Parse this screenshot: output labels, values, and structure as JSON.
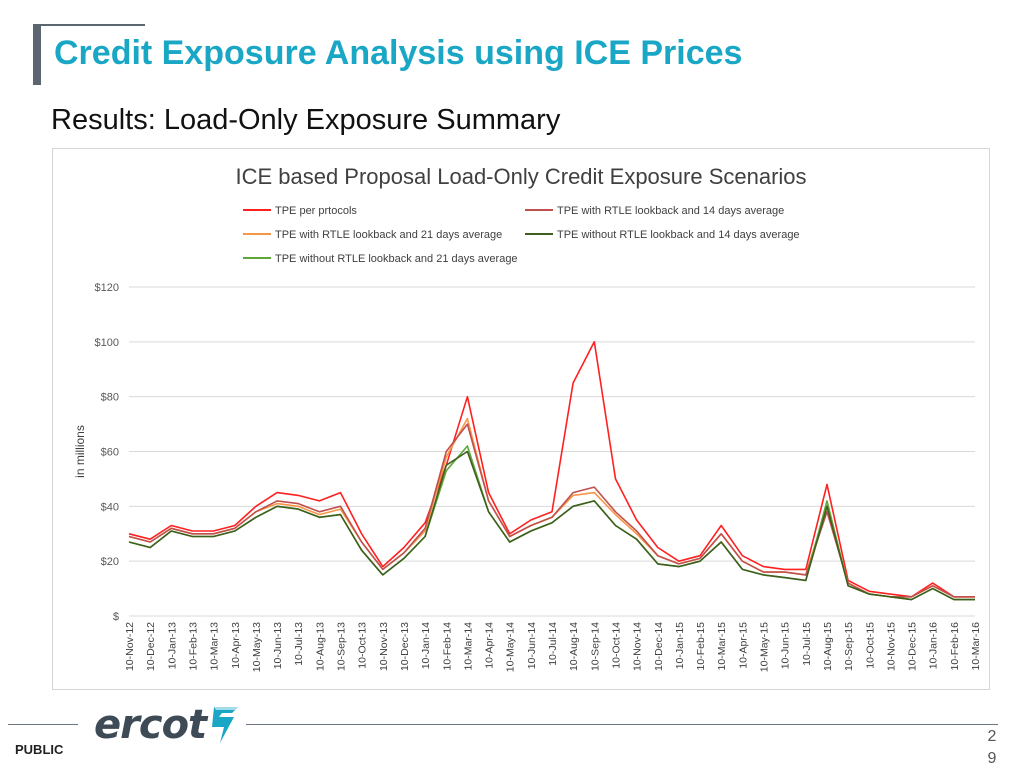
{
  "slide": {
    "title": "Credit Exposure Analysis using ICE Prices",
    "subtitle": "Results: Load-Only Exposure Summary",
    "footer_label": "PUBLIC",
    "logo_text": "ercot",
    "page_number_line1": "2",
    "page_number_line2": "9"
  },
  "colors": {
    "title": "#1aa7c6",
    "accent_bar": "#5b6670",
    "TPE per prtocols": "#ff2020",
    "TPE with RTLE lookback and 14 days average": "#c0504d",
    "TPE with RTLE lookback and 21 days average": "#f79646",
    "TPE without RTLE lookback and 14 days average": "#3f5f1f",
    "TPE without RTLE lookback and 21 days average": "#5ea83a"
  },
  "chart_data": {
    "type": "line",
    "title": "ICE based Proposal Load-Only Credit Exposure Scenarios",
    "xlabel": "",
    "ylabel": "in millions",
    "ylim": [
      0,
      120
    ],
    "y_ticks": [
      "$",
      "$20",
      "$40",
      "$60",
      "$80",
      "$100",
      "$120"
    ],
    "y_tick_values": [
      0,
      20,
      40,
      60,
      80,
      100,
      120
    ],
    "grid": true,
    "legend_position": "top",
    "categories": [
      "10-Nov-12",
      "10-Dec-12",
      "10-Jan-13",
      "10-Feb-13",
      "10-Mar-13",
      "10-Apr-13",
      "10-May-13",
      "10-Jun-13",
      "10-Jul-13",
      "10-Aug-13",
      "10-Sep-13",
      "10-Oct-13",
      "10-Nov-13",
      "10-Dec-13",
      "10-Jan-14",
      "10-Feb-14",
      "10-Mar-14",
      "10-Apr-14",
      "10-May-14",
      "10-Jun-14",
      "10-Jul-14",
      "10-Aug-14",
      "10-Sep-14",
      "10-Oct-14",
      "10-Nov-14",
      "10-Dec-14",
      "10-Jan-15",
      "10-Feb-15",
      "10-Mar-15",
      "10-Apr-15",
      "10-May-15",
      "10-Jun-15",
      "10-Jul-15",
      "10-Aug-15",
      "10-Sep-15",
      "10-Oct-15",
      "10-Nov-15",
      "10-Dec-15",
      "10-Jan-16",
      "10-Feb-16",
      "10-Mar-16"
    ],
    "series": [
      {
        "name": "TPE per prtocols",
        "values": [
          30,
          28,
          33,
          31,
          31,
          33,
          40,
          45,
          44,
          42,
          45,
          30,
          18,
          25,
          34,
          55,
          80,
          45,
          30,
          35,
          38,
          85,
          100,
          50,
          35,
          25,
          20,
          22,
          33,
          22,
          18,
          17,
          17,
          48,
          13,
          9,
          8,
          7,
          12,
          7,
          7
        ]
      },
      {
        "name": "TPE with RTLE lookback and 14 days average",
        "values": [
          29,
          27,
          32,
          30,
          30,
          32,
          38,
          42,
          41,
          38,
          40,
          27,
          17,
          23,
          32,
          60,
          70,
          42,
          29,
          33,
          36,
          45,
          47,
          38,
          31,
          22,
          19,
          21,
          30,
          20,
          16,
          16,
          15,
          38,
          12,
          8,
          7,
          7,
          11,
          7,
          7
        ]
      },
      {
        "name": "TPE with RTLE lookback and 21 days average",
        "values": [
          29,
          27,
          32,
          30,
          30,
          32,
          38,
          41,
          40,
          37,
          39,
          27,
          17,
          23,
          31,
          58,
          72,
          42,
          29,
          33,
          36,
          44,
          45,
          37,
          30,
          22,
          19,
          21,
          30,
          20,
          16,
          16,
          15,
          40,
          12,
          8,
          7,
          7,
          11,
          7,
          7
        ]
      },
      {
        "name": "TPE without RTLE lookback and 14 days average",
        "values": [
          27,
          25,
          31,
          29,
          29,
          31,
          36,
          40,
          39,
          36,
          37,
          24,
          15,
          21,
          29,
          55,
          60,
          38,
          27,
          31,
          34,
          40,
          42,
          33,
          28,
          19,
          18,
          20,
          27,
          17,
          15,
          14,
          13,
          40,
          11,
          8,
          7,
          6,
          10,
          6,
          6
        ]
      },
      {
        "name": "TPE without RTLE lookback and 21 days average",
        "values": [
          27,
          25,
          31,
          29,
          29,
          31,
          36,
          40,
          39,
          36,
          37,
          24,
          15,
          21,
          29,
          53,
          62,
          38,
          27,
          31,
          34,
          40,
          42,
          33,
          28,
          19,
          18,
          20,
          27,
          17,
          15,
          14,
          13,
          42,
          11,
          8,
          7,
          6,
          10,
          6,
          6
        ]
      }
    ]
  }
}
